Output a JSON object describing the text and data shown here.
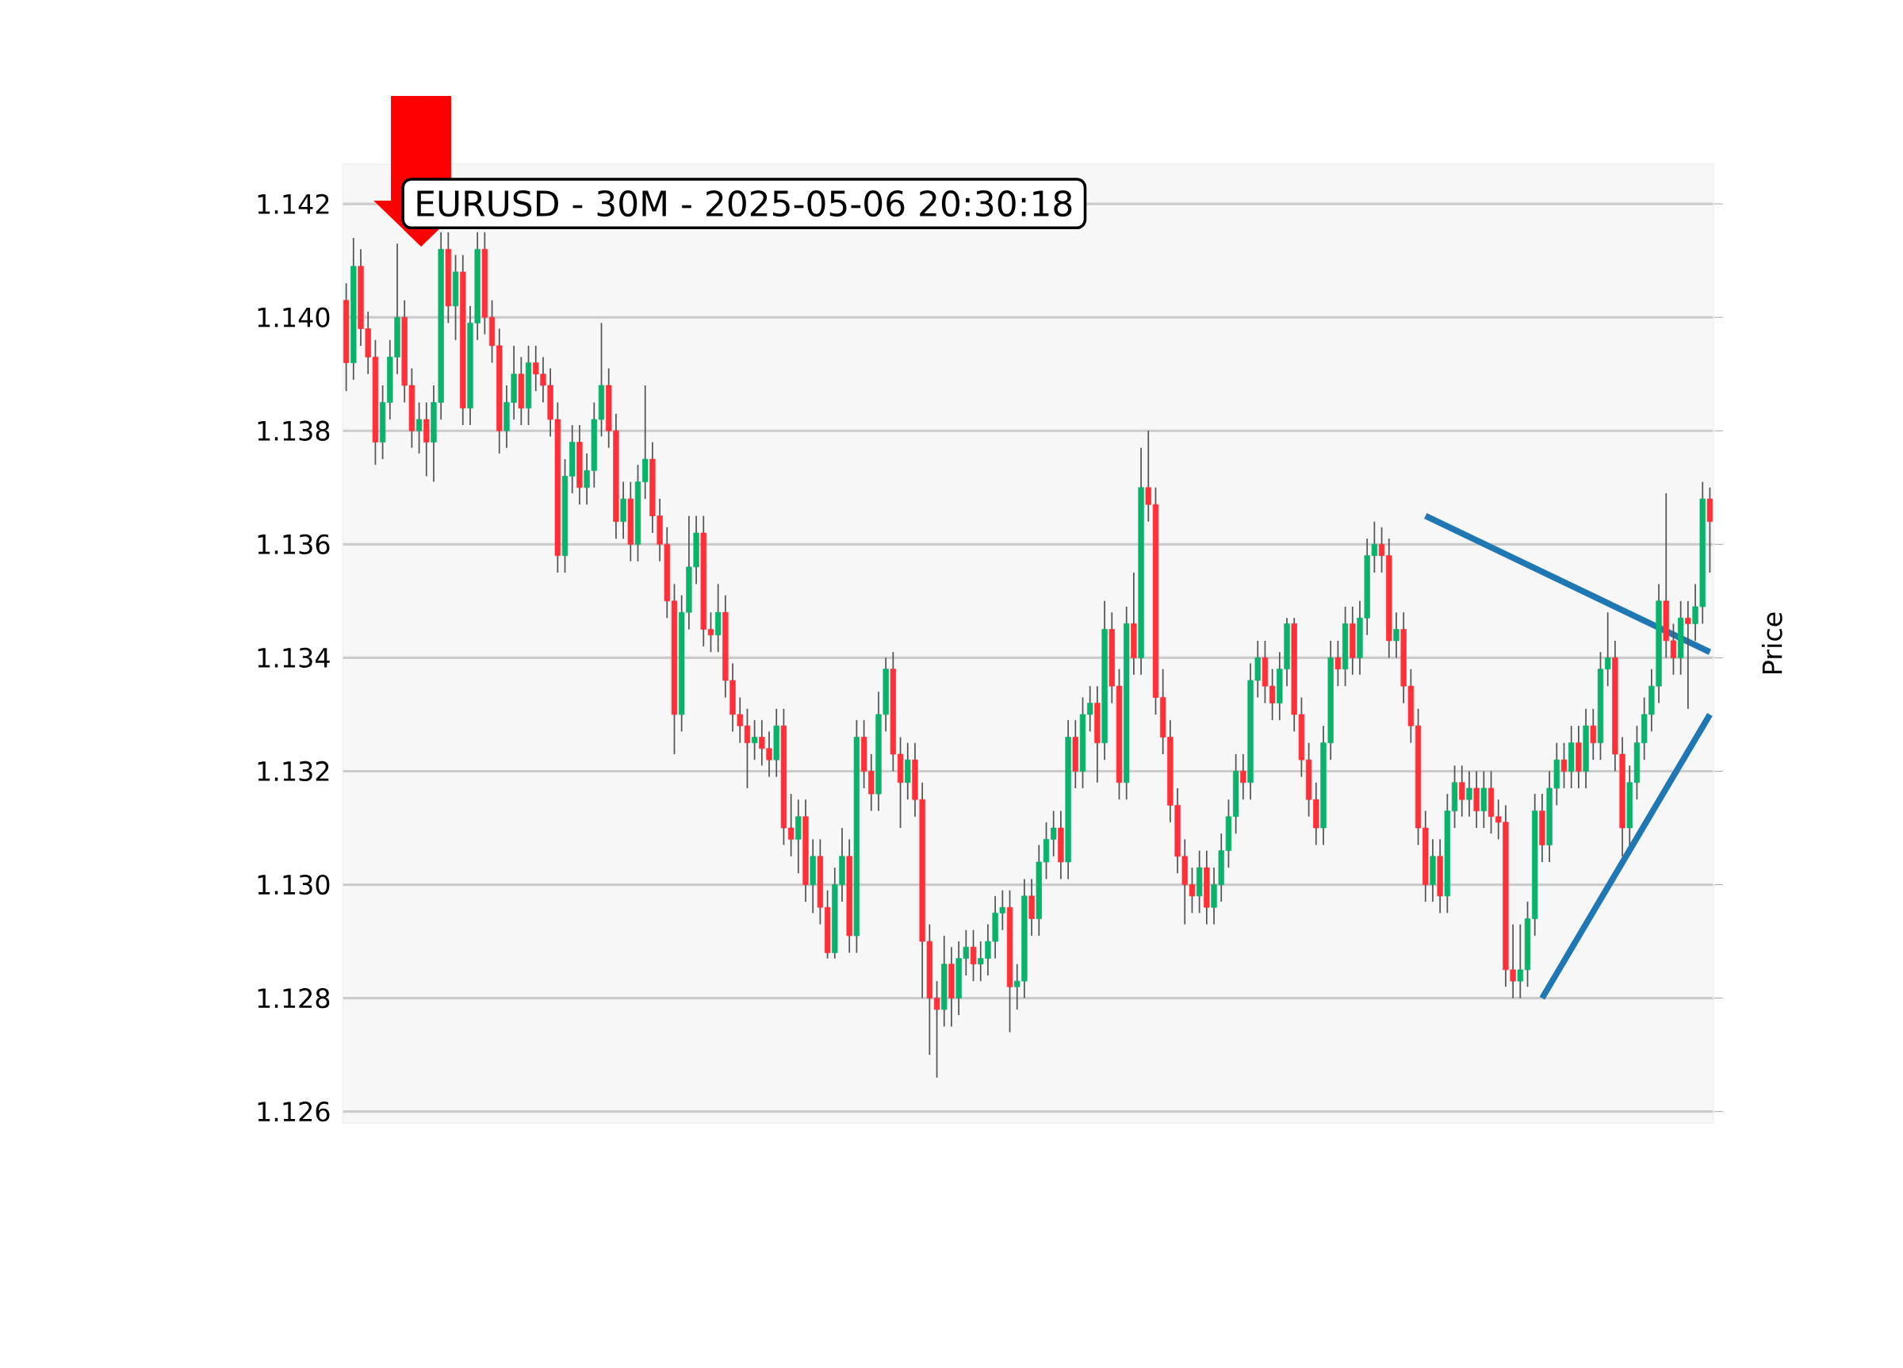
{
  "chart_data": {
    "type": "candlestick",
    "title": "EURUSD - 30M - 2025-05-06 20:30:18",
    "ylabel": "Price",
    "grid": "y",
    "ylim": [
      1.1258,
      1.1427
    ],
    "yticks": [
      1.126,
      1.128,
      {
        "value": 1.13,
        "label": "1.130"
      },
      1.132,
      1.134,
      1.136,
      1.138,
      {
        "value": 1.14,
        "label": "1.140"
      },
      1.142
    ],
    "categories": [
      null,
      null,
      null,
      null,
      null,
      null,
      null,
      null,
      null,
      null,
      null,
      null,
      null,
      null,
      null,
      null,
      null,
      null,
      null,
      null,
      null,
      null,
      null,
      null,
      null,
      null,
      null,
      null,
      null,
      null,
      null,
      null,
      null,
      null,
      null,
      null,
      null,
      null,
      null,
      null,
      null,
      null,
      null,
      null,
      null,
      null,
      null,
      null,
      null,
      null,
      null,
      null,
      null,
      null,
      null,
      null,
      null,
      null,
      null,
      null,
      null,
      null,
      null,
      null,
      null,
      null,
      null,
      null,
      null,
      null,
      null,
      null,
      null,
      null,
      null,
      null,
      null,
      null,
      null,
      null,
      null,
      null,
      null,
      null,
      null,
      null,
      null,
      null,
      null,
      null,
      null,
      null,
      null,
      null,
      null,
      null,
      null,
      null,
      null,
      null,
      null,
      null,
      null,
      null,
      null,
      null,
      null,
      null,
      null,
      null,
      null,
      null,
      null,
      null,
      null,
      null,
      null,
      null,
      null,
      null,
      null,
      null,
      null,
      null,
      null,
      null,
      null,
      null,
      null,
      null,
      null,
      null,
      null,
      null,
      null,
      null,
      null,
      null,
      null,
      null,
      null,
      null,
      null,
      null,
      null,
      null,
      null,
      null,
      null,
      null,
      null,
      null,
      null,
      null,
      null,
      null,
      null,
      null,
      null,
      null,
      null,
      null,
      null,
      null,
      null,
      null,
      null,
      null,
      null,
      null,
      null,
      null,
      null,
      null,
      null,
      null,
      null,
      null,
      null,
      null,
      null,
      null,
      null,
      null,
      null,
      null,
      null,
      null
    ],
    "ohlc": [
      [
        1.1403,
        1.1406,
        1.1387,
        1.1392
      ],
      [
        1.1392,
        1.1414,
        1.1389,
        1.1409
      ],
      [
        1.1409,
        1.1412,
        1.1395,
        1.1398
      ],
      [
        1.1398,
        1.1401,
        1.139,
        1.1393
      ],
      [
        1.1393,
        1.1396,
        1.1374,
        1.1378
      ],
      [
        1.1378,
        1.1388,
        1.1375,
        1.1385
      ],
      [
        1.1385,
        1.1396,
        1.1382,
        1.1393
      ],
      [
        1.1393,
        1.1413,
        1.139,
        1.14
      ],
      [
        1.14,
        1.1403,
        1.1385,
        1.1388
      ],
      [
        1.1388,
        1.1391,
        1.1377,
        1.138
      ],
      [
        1.138,
        1.1385,
        1.1376,
        1.1382
      ],
      [
        1.1382,
        1.1385,
        1.1372,
        1.1378
      ],
      [
        1.1378,
        1.1388,
        1.1371,
        1.1385
      ],
      [
        1.1385,
        1.1415,
        1.1382,
        1.1412
      ],
      [
        1.1412,
        1.1415,
        1.1399,
        1.1402
      ],
      [
        1.1402,
        1.1411,
        1.1396,
        1.1408
      ],
      [
        1.1408,
        1.1411,
        1.1381,
        1.1384
      ],
      [
        1.1384,
        1.1402,
        1.1381,
        1.1399
      ],
      [
        1.1399,
        1.1415,
        1.1396,
        1.1412
      ],
      [
        1.1412,
        1.1415,
        1.1397,
        1.14
      ],
      [
        1.14,
        1.1403,
        1.1392,
        1.1395
      ],
      [
        1.1395,
        1.1398,
        1.1376,
        1.138
      ],
      [
        1.138,
        1.1388,
        1.1377,
        1.1385
      ],
      [
        1.1385,
        1.1395,
        1.1382,
        1.139
      ],
      [
        1.139,
        1.1393,
        1.1381,
        1.1384
      ],
      [
        1.1384,
        1.1395,
        1.1381,
        1.1392
      ],
      [
        1.1392,
        1.1395,
        1.1387,
        1.139
      ],
      [
        1.139,
        1.1393,
        1.1385,
        1.1388
      ],
      [
        1.1388,
        1.1391,
        1.1379,
        1.1382
      ],
      [
        1.1382,
        1.1385,
        1.1355,
        1.1358
      ],
      [
        1.1358,
        1.1375,
        1.1355,
        1.1372
      ],
      [
        1.1372,
        1.1381,
        1.1369,
        1.1378
      ],
      [
        1.1378,
        1.1381,
        1.1367,
        1.137
      ],
      [
        1.137,
        1.1376,
        1.1367,
        1.1373
      ],
      [
        1.1373,
        1.1385,
        1.137,
        1.1382
      ],
      [
        1.1382,
        1.1399,
        1.1379,
        1.1388
      ],
      [
        1.1388,
        1.1391,
        1.1377,
        1.138
      ],
      [
        1.138,
        1.1383,
        1.1361,
        1.1364
      ],
      [
        1.1364,
        1.1371,
        1.1361,
        1.1368
      ],
      [
        1.1368,
        1.1371,
        1.1357,
        1.136
      ],
      [
        1.136,
        1.1374,
        1.1357,
        1.1371
      ],
      [
        1.1371,
        1.1388,
        1.1368,
        1.1375
      ],
      [
        1.1375,
        1.1378,
        1.1362,
        1.1365
      ],
      [
        1.1365,
        1.1368,
        1.1357,
        1.136
      ],
      [
        1.136,
        1.1363,
        1.1347,
        1.135
      ],
      [
        1.135,
        1.1353,
        1.1323,
        1.133
      ],
      [
        1.133,
        1.1351,
        1.1327,
        1.1348
      ],
      [
        1.1348,
        1.1365,
        1.1345,
        1.1356
      ],
      [
        1.1356,
        1.1365,
        1.1353,
        1.1362
      ],
      [
        1.1362,
        1.1365,
        1.1342,
        1.1345
      ],
      [
        1.1345,
        1.1348,
        1.1341,
        1.1344
      ],
      [
        1.1344,
        1.1353,
        1.1341,
        1.1348
      ],
      [
        1.1348,
        1.1351,
        1.1333,
        1.1336
      ],
      [
        1.1336,
        1.1339,
        1.1327,
        1.133
      ],
      [
        1.133,
        1.1333,
        1.1325,
        1.1328
      ],
      [
        1.1328,
        1.1331,
        1.1317,
        1.1325
      ],
      [
        1.1325,
        1.1329,
        1.1322,
        1.1326
      ],
      [
        1.1326,
        1.1329,
        1.1321,
        1.1324
      ],
      [
        1.1324,
        1.1327,
        1.1319,
        1.1322
      ],
      [
        1.1322,
        1.1331,
        1.1319,
        1.1328
      ],
      [
        1.1328,
        1.1331,
        1.1307,
        1.131
      ],
      [
        1.131,
        1.1316,
        1.1305,
        1.1308
      ],
      [
        1.1308,
        1.1315,
        1.1302,
        1.1312
      ],
      [
        1.1312,
        1.1315,
        1.1297,
        1.13
      ],
      [
        1.13,
        1.1308,
        1.1295,
        1.1305
      ],
      [
        1.1305,
        1.1308,
        1.1293,
        1.1296
      ],
      [
        1.1296,
        1.1299,
        1.1287,
        1.1288
      ],
      [
        1.1288,
        1.1303,
        1.1287,
        1.13
      ],
      [
        1.13,
        1.131,
        1.1297,
        1.1305
      ],
      [
        1.1305,
        1.1308,
        1.1288,
        1.1291
      ],
      [
        1.1291,
        1.1329,
        1.1288,
        1.1326
      ],
      [
        1.1326,
        1.1329,
        1.1317,
        1.132
      ],
      [
        1.132,
        1.1323,
        1.1313,
        1.1316
      ],
      [
        1.1316,
        1.1334,
        1.1313,
        1.133
      ],
      [
        1.133,
        1.134,
        1.1327,
        1.1338
      ],
      [
        1.1338,
        1.1341,
        1.132,
        1.1323
      ],
      [
        1.1323,
        1.1326,
        1.131,
        1.1318
      ],
      [
        1.1318,
        1.1325,
        1.1315,
        1.1322
      ],
      [
        1.1322,
        1.1325,
        1.1312,
        1.1315
      ],
      [
        1.1315,
        1.1318,
        1.128,
        1.129
      ],
      [
        1.129,
        1.1293,
        1.127,
        1.128
      ],
      [
        1.128,
        1.1283,
        1.1266,
        1.1278
      ],
      [
        1.1278,
        1.1291,
        1.1275,
        1.1286
      ],
      [
        1.1286,
        1.1289,
        1.1275,
        1.128
      ],
      [
        1.128,
        1.129,
        1.1277,
        1.1287
      ],
      [
        1.1287,
        1.1292,
        1.1284,
        1.1289
      ],
      [
        1.1289,
        1.1292,
        1.1283,
        1.1286
      ],
      [
        1.1286,
        1.129,
        1.1283,
        1.1287
      ],
      [
        1.1287,
        1.1293,
        1.1284,
        1.129
      ],
      [
        1.129,
        1.1298,
        1.1287,
        1.1295
      ],
      [
        1.1295,
        1.1299,
        1.1292,
        1.1296
      ],
      [
        1.1296,
        1.1299,
        1.1274,
        1.1282
      ],
      [
        1.1282,
        1.1286,
        1.1278,
        1.1283
      ],
      [
        1.1283,
        1.1301,
        1.128,
        1.1298
      ],
      [
        1.1298,
        1.1301,
        1.1291,
        1.1294
      ],
      [
        1.1294,
        1.1307,
        1.1291,
        1.1304
      ],
      [
        1.1304,
        1.1311,
        1.1301,
        1.1308
      ],
      [
        1.1308,
        1.1313,
        1.1305,
        1.131
      ],
      [
        1.131,
        1.1313,
        1.1301,
        1.1304
      ],
      [
        1.1304,
        1.1329,
        1.1301,
        1.1326
      ],
      [
        1.1326,
        1.1329,
        1.1317,
        1.132
      ],
      [
        1.132,
        1.1333,
        1.1317,
        1.133
      ],
      [
        1.133,
        1.1335,
        1.1327,
        1.1332
      ],
      [
        1.1332,
        1.1335,
        1.1318,
        1.1325
      ],
      [
        1.1325,
        1.135,
        1.1322,
        1.1345
      ],
      [
        1.1345,
        1.1348,
        1.1332,
        1.1335
      ],
      [
        1.1335,
        1.1338,
        1.1315,
        1.1318
      ],
      [
        1.1318,
        1.1349,
        1.1315,
        1.1346
      ],
      [
        1.1346,
        1.1355,
        1.1337,
        1.134
      ],
      [
        1.134,
        1.1377,
        1.1337,
        1.137
      ],
      [
        1.137,
        1.138,
        1.1364,
        1.1367
      ],
      [
        1.1367,
        1.137,
        1.133,
        1.1333
      ],
      [
        1.1333,
        1.1338,
        1.1323,
        1.1326
      ],
      [
        1.1326,
        1.1329,
        1.1311,
        1.1314
      ],
      [
        1.1314,
        1.1317,
        1.1302,
        1.1305
      ],
      [
        1.1305,
        1.1308,
        1.1293,
        1.13
      ],
      [
        1.13,
        1.1303,
        1.1295,
        1.1298
      ],
      [
        1.1298,
        1.1306,
        1.1295,
        1.1303
      ],
      [
        1.1303,
        1.1306,
        1.1293,
        1.1296
      ],
      [
        1.1296,
        1.1303,
        1.1293,
        1.13
      ],
      [
        1.13,
        1.1309,
        1.1297,
        1.1306
      ],
      [
        1.1306,
        1.1315,
        1.1303,
        1.1312
      ],
      [
        1.1312,
        1.1323,
        1.1309,
        1.132
      ],
      [
        1.132,
        1.1323,
        1.1315,
        1.1318
      ],
      [
        1.1318,
        1.1339,
        1.1315,
        1.1336
      ],
      [
        1.1336,
        1.1343,
        1.1333,
        1.134
      ],
      [
        1.134,
        1.1343,
        1.1332,
        1.1335
      ],
      [
        1.1335,
        1.1338,
        1.1329,
        1.1332
      ],
      [
        1.1332,
        1.1341,
        1.1329,
        1.1338
      ],
      [
        1.1338,
        1.1347,
        1.1335,
        1.1346
      ],
      [
        1.1346,
        1.1347,
        1.1327,
        1.133
      ],
      [
        1.133,
        1.1333,
        1.1319,
        1.1322
      ],
      [
        1.1322,
        1.1325,
        1.1312,
        1.1315
      ],
      [
        1.1315,
        1.1318,
        1.1307,
        1.131
      ],
      [
        1.131,
        1.1328,
        1.1307,
        1.1325
      ],
      [
        1.1325,
        1.1343,
        1.1322,
        1.134
      ],
      [
        1.134,
        1.1343,
        1.1335,
        1.1338
      ],
      [
        1.1338,
        1.1349,
        1.1335,
        1.1346
      ],
      [
        1.1346,
        1.1349,
        1.1337,
        1.134
      ],
      [
        1.134,
        1.135,
        1.1337,
        1.1347
      ],
      [
        1.1347,
        1.1361,
        1.1344,
        1.1358
      ],
      [
        1.1358,
        1.1364,
        1.1355,
        1.136
      ],
      [
        1.136,
        1.1363,
        1.1355,
        1.1358
      ],
      [
        1.1358,
        1.1361,
        1.134,
        1.1343
      ],
      [
        1.1343,
        1.1348,
        1.134,
        1.1345
      ],
      [
        1.1345,
        1.1348,
        1.1332,
        1.1335
      ],
      [
        1.1335,
        1.1338,
        1.1325,
        1.1328
      ],
      [
        1.1328,
        1.1331,
        1.1307,
        1.131
      ],
      [
        1.131,
        1.1313,
        1.1297,
        1.13
      ],
      [
        1.13,
        1.1308,
        1.1297,
        1.1305
      ],
      [
        1.1305,
        1.1308,
        1.1295,
        1.1298
      ],
      [
        1.1298,
        1.1316,
        1.1295,
        1.1313
      ],
      [
        1.1313,
        1.1321,
        1.131,
        1.1318
      ],
      [
        1.1318,
        1.1321,
        1.1312,
        1.1315
      ],
      [
        1.1315,
        1.132,
        1.1312,
        1.1317
      ],
      [
        1.1317,
        1.132,
        1.131,
        1.1313
      ],
      [
        1.1313,
        1.132,
        1.131,
        1.1317
      ],
      [
        1.1317,
        1.132,
        1.1309,
        1.1312
      ],
      [
        1.1312,
        1.1315,
        1.1308,
        1.1311
      ],
      [
        1.1311,
        1.1314,
        1.1282,
        1.1285
      ],
      [
        1.1285,
        1.1293,
        1.128,
        1.1283
      ],
      [
        1.1283,
        1.1293,
        1.128,
        1.1285
      ],
      [
        1.1285,
        1.1297,
        1.1282,
        1.1294
      ],
      [
        1.1294,
        1.1316,
        1.1291,
        1.1313
      ],
      [
        1.1313,
        1.1316,
        1.1304,
        1.1307
      ],
      [
        1.1307,
        1.132,
        1.1304,
        1.1317
      ],
      [
        1.1317,
        1.1325,
        1.1314,
        1.1322
      ],
      [
        1.1322,
        1.1325,
        1.1317,
        1.132
      ],
      [
        1.132,
        1.1328,
        1.1317,
        1.1325
      ],
      [
        1.1325,
        1.1328,
        1.1317,
        1.132
      ],
      [
        1.132,
        1.1331,
        1.1317,
        1.1328
      ],
      [
        1.1328,
        1.1331,
        1.1322,
        1.1325
      ],
      [
        1.1325,
        1.1341,
        1.1322,
        1.1338
      ],
      [
        1.1338,
        1.1348,
        1.1335,
        1.134
      ],
      [
        1.134,
        1.1343,
        1.132,
        1.1323
      ],
      [
        1.1323,
        1.1326,
        1.1305,
        1.131
      ],
      [
        1.131,
        1.1321,
        1.1307,
        1.1318
      ],
      [
        1.1318,
        1.1328,
        1.1315,
        1.1325
      ],
      [
        1.1325,
        1.1333,
        1.1322,
        1.133
      ],
      [
        1.133,
        1.1338,
        1.1327,
        1.1335
      ],
      [
        1.1335,
        1.1353,
        1.1332,
        1.135
      ],
      [
        1.135,
        1.1369,
        1.134,
        1.1343
      ],
      [
        1.1343,
        1.1346,
        1.1337,
        1.134
      ],
      [
        1.134,
        1.135,
        1.1337,
        1.1347
      ],
      [
        1.1347,
        1.135,
        1.1331,
        1.1346
      ],
      [
        1.1346,
        1.1353,
        1.1343,
        1.1349
      ],
      [
        1.1349,
        1.1371,
        1.1346,
        1.1368
      ],
      [
        1.1368,
        1.137,
        1.1355,
        1.1364
      ]
    ],
    "series": [
      {
        "type": "line",
        "color": "#1f77b4",
        "values": [
          null,
          null,
          null,
          null,
          null,
          null,
          null,
          null,
          null,
          null,
          null,
          null,
          null,
          null,
          null,
          null,
          null,
          null,
          null,
          null,
          null,
          null,
          null,
          null,
          null,
          null,
          null,
          null,
          null,
          null,
          null,
          null,
          null,
          null,
          null,
          null,
          null,
          null,
          null,
          null,
          null,
          null,
          null,
          null,
          null,
          null,
          null,
          null,
          null,
          null,
          null,
          null,
          null,
          null,
          null,
          null,
          null,
          null,
          null,
          null,
          null,
          null,
          null,
          null,
          null,
          null,
          null,
          null,
          null,
          null,
          null,
          null,
          null,
          null,
          null,
          null,
          null,
          null,
          null,
          null,
          null,
          null,
          null,
          null,
          null,
          null,
          null,
          null,
          null,
          null,
          null,
          null,
          null,
          null,
          null,
          null,
          null,
          null,
          null,
          null,
          null,
          null,
          null,
          null,
          null,
          null,
          null,
          null,
          null,
          null,
          null,
          null,
          null,
          null,
          null,
          null,
          null,
          null,
          null,
          null,
          null,
          null,
          null,
          null,
          null,
          null,
          null,
          null,
          null,
          null,
          null,
          null,
          null,
          null,
          null,
          null,
          null,
          null,
          null,
          null,
          null,
          null,
          null,
          null,
          null,
          null,
          null,
          null,
          1.1365,
          null,
          null,
          null,
          null,
          null,
          null,
          null,
          null,
          null,
          null,
          null,
          null,
          null,
          null,
          null,
          null,
          null,
          null,
          null,
          null,
          null,
          null,
          null,
          null,
          null,
          null,
          null,
          null,
          null,
          null,
          null,
          null,
          null,
          null,
          null,
          null,
          null,
          null,
          1.1341
        ]
      },
      {
        "type": "line",
        "color": "#1f77b4",
        "values": [
          null,
          null,
          null,
          null,
          null,
          null,
          null,
          null,
          null,
          null,
          null,
          null,
          null,
          null,
          null,
          null,
          null,
          null,
          null,
          null,
          null,
          null,
          null,
          null,
          null,
          null,
          null,
          null,
          null,
          null,
          null,
          null,
          null,
          null,
          null,
          null,
          null,
          null,
          null,
          null,
          null,
          null,
          null,
          null,
          null,
          null,
          null,
          null,
          null,
          null,
          null,
          null,
          null,
          null,
          null,
          null,
          null,
          null,
          null,
          null,
          null,
          null,
          null,
          null,
          null,
          null,
          null,
          null,
          null,
          null,
          null,
          null,
          null,
          null,
          null,
          null,
          null,
          null,
          null,
          null,
          null,
          null,
          null,
          null,
          null,
          null,
          null,
          null,
          null,
          null,
          null,
          null,
          null,
          null,
          null,
          null,
          null,
          null,
          null,
          null,
          null,
          null,
          null,
          null,
          null,
          null,
          null,
          null,
          null,
          null,
          null,
          null,
          null,
          null,
          null,
          null,
          null,
          null,
          null,
          null,
          null,
          null,
          null,
          null,
          null,
          null,
          null,
          null,
          null,
          null,
          null,
          null,
          null,
          null,
          null,
          null,
          null,
          null,
          null,
          null,
          null,
          null,
          null,
          null,
          null,
          null,
          null,
          null,
          null,
          null,
          null,
          null,
          null,
          null,
          null,
          null,
          null,
          null,
          null,
          null,
          null,
          null,
          null,
          null,
          1.128,
          null,
          null,
          null,
          null,
          null,
          null,
          null,
          null,
          null,
          null,
          null,
          null,
          null,
          null,
          null,
          null,
          null,
          null,
          null,
          null,
          null,
          null,
          1.133
        ]
      }
    ]
  }
}
